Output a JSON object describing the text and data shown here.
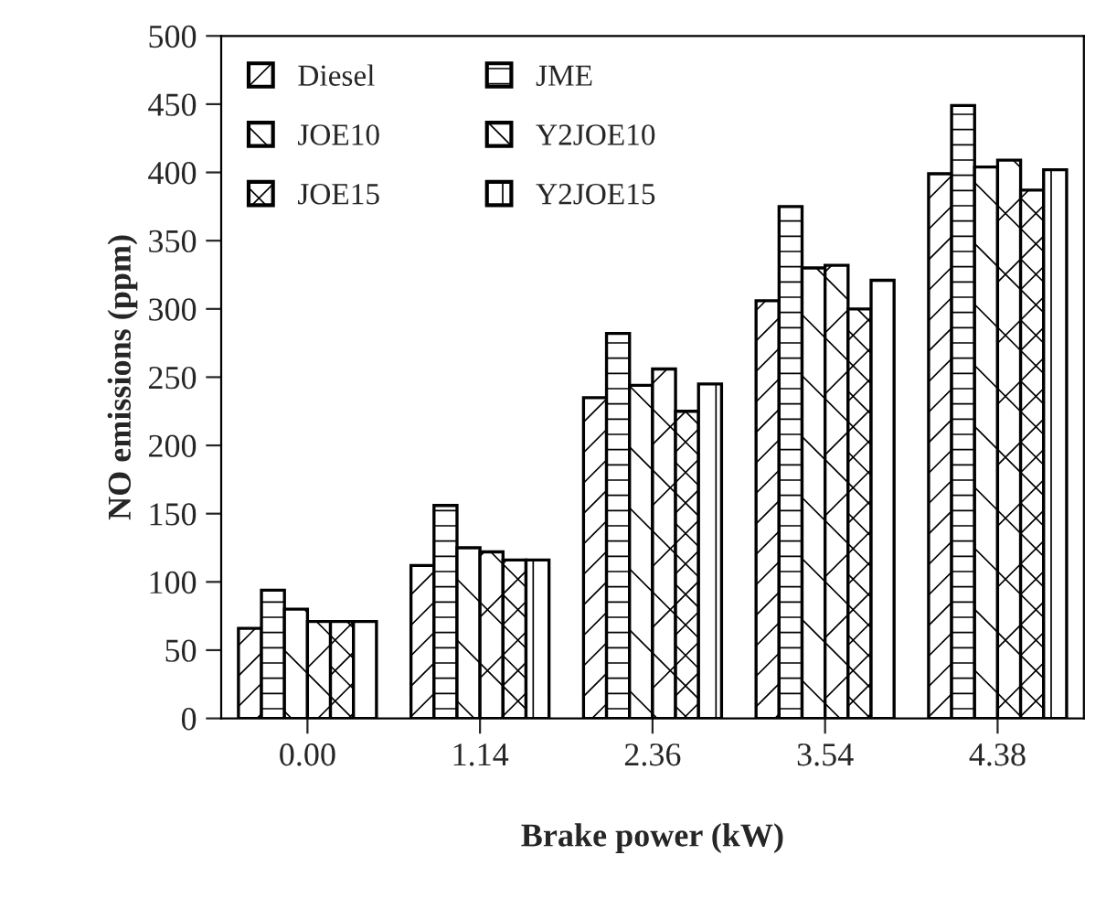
{
  "chart_data": {
    "type": "bar",
    "xlabel": "Brake power (kW)",
    "ylabel": "NO emissions (ppm)",
    "categories": [
      "0.00",
      "1.14",
      "2.36",
      "3.54",
      "4.38"
    ],
    "series": [
      {
        "name": "Diesel",
        "color": "#000000",
        "values": [
          66,
          112,
          235,
          306,
          399
        ]
      },
      {
        "name": "JME",
        "color": "#000000",
        "values": [
          94,
          156,
          282,
          375,
          449
        ]
      },
      {
        "name": "JOE10",
        "color": "#000000",
        "values": [
          80,
          125,
          244,
          330,
          404
        ]
      },
      {
        "name": "Y2JOE10",
        "color": "#000000",
        "values": [
          71,
          122,
          256,
          332,
          409
        ]
      },
      {
        "name": "JOE15",
        "color": "#000000",
        "values": [
          71,
          116,
          225,
          300,
          387
        ]
      },
      {
        "name": "Y2JOE15",
        "color": "#000000",
        "values": [
          71,
          116,
          245,
          321,
          402
        ]
      }
    ],
    "ylim": [
      0,
      500
    ],
    "yticks": [
      0,
      50,
      100,
      150,
      200,
      250,
      300,
      350,
      400,
      450,
      500
    ],
    "grid": false,
    "legend": "top left"
  }
}
